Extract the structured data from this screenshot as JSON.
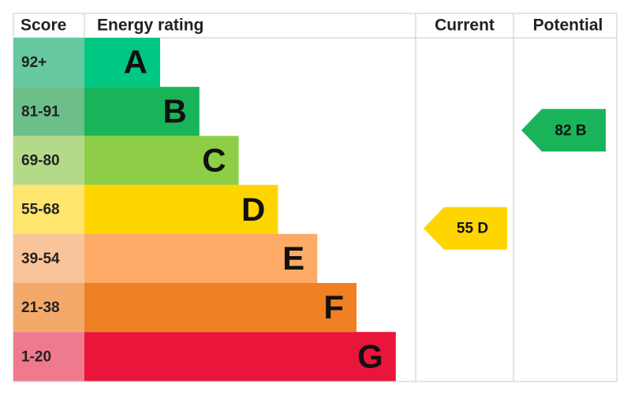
{
  "headers": {
    "score": "Score",
    "rating": "Energy rating",
    "current": "Current",
    "potential": "Potential"
  },
  "rows": [
    {
      "range": "92+",
      "letter": "A",
      "color": "#00c781",
      "cell_color": "#66c9a0"
    },
    {
      "range": "81-91",
      "letter": "B",
      "color": "#19b459",
      "cell_color": "#6dbf8a"
    },
    {
      "range": "69-80",
      "letter": "C",
      "color": "#8dce46",
      "cell_color": "#b3da88"
    },
    {
      "range": "55-68",
      "letter": "D",
      "color": "#ffd500",
      "cell_color": "#fde56e"
    },
    {
      "range": "39-54",
      "letter": "E",
      "color": "#fcaa65",
      "cell_color": "#fac49a"
    },
    {
      "range": "21-38",
      "letter": "F",
      "color": "#ef8023",
      "cell_color": "#f3a96a"
    },
    {
      "range": "1-20",
      "letter": "G",
      "color": "#e9153b",
      "cell_color": "#f07a8d"
    }
  ],
  "current": {
    "score": 55,
    "rating": "D"
  },
  "potential": {
    "score": 82,
    "rating": "B"
  }
}
